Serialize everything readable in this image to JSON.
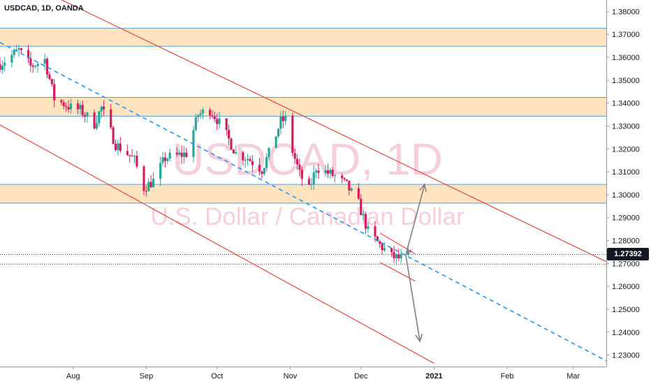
{
  "header": {
    "symbol_info": "USDCAD, 1D, OANDA"
  },
  "watermark": {
    "symbol": "USDCAD, 1D",
    "description": "U.S. Dollar / Canadian Dollar"
  },
  "last_price": {
    "label": "1.27392",
    "value": 1.27392
  },
  "colors": {
    "up": "#26a69a",
    "down": "#d81b60",
    "zone_fill": "#ffe4bf",
    "zone_border": "#5b9bd5",
    "channel": "#e53935",
    "midline": "#2196f3",
    "arrow": "#808080",
    "axis_bg": "#ffffff"
  },
  "chart_data": {
    "type": "candlestick",
    "y_axis": {
      "min": 1.225,
      "max": 1.385,
      "ticks": [
        1.38,
        1.37,
        1.36,
        1.35,
        1.34,
        1.33,
        1.32,
        1.31,
        1.3,
        1.29,
        1.28,
        1.27,
        1.26,
        1.25,
        1.24,
        1.23
      ],
      "tick_labels": [
        "1.38000",
        "1.37000",
        "1.36000",
        "1.35000",
        "1.34000",
        "1.33000",
        "1.32000",
        "1.31000",
        "1.30000",
        "1.29000",
        "1.28000",
        "1.27000",
        "1.26000",
        "1.25000",
        "1.24000",
        "1.23000"
      ]
    },
    "x_axis": {
      "start": "2020-07-01",
      "end": "2021-03-15",
      "ticks": [
        {
          "date": "2020-08-01",
          "label": "Aug",
          "bold": false
        },
        {
          "date": "2020-09-01",
          "label": "Sep",
          "bold": false
        },
        {
          "date": "2020-10-01",
          "label": "Oct",
          "bold": false
        },
        {
          "date": "2020-11-01",
          "label": "Nov",
          "bold": false
        },
        {
          "date": "2020-12-01",
          "label": "Dec",
          "bold": false
        },
        {
          "date": "2021-01-01",
          "label": "2021",
          "bold": true
        },
        {
          "date": "2021-02-01",
          "label": "Feb",
          "bold": false
        },
        {
          "date": "2021-03-01",
          "label": "Mar",
          "bold": false
        }
      ]
    },
    "anchors": [
      [
        "2020-07-01",
        1.357
      ],
      [
        "2020-07-09",
        1.363
      ],
      [
        "2020-07-14",
        1.356
      ],
      [
        "2020-07-20",
        1.359
      ],
      [
        "2020-07-24",
        1.342
      ],
      [
        "2020-07-31",
        1.338
      ],
      [
        "2020-08-04",
        1.337
      ],
      [
        "2020-08-10",
        1.331
      ],
      [
        "2020-08-13",
        1.338
      ],
      [
        "2020-08-19",
        1.322
      ],
      [
        "2020-08-24",
        1.318
      ],
      [
        "2020-08-27",
        1.315
      ],
      [
        "2020-08-31",
        1.303
      ],
      [
        "2020-09-04",
        1.306
      ],
      [
        "2020-09-09",
        1.316
      ],
      [
        "2020-09-14",
        1.317
      ],
      [
        "2020-09-18",
        1.318
      ],
      [
        "2020-09-23",
        1.335
      ],
      [
        "2020-09-28",
        1.337
      ],
      [
        "2020-10-01",
        1.333
      ],
      [
        "2020-10-05",
        1.326
      ],
      [
        "2020-10-09",
        1.318
      ],
      [
        "2020-10-14",
        1.316
      ],
      [
        "2020-10-20",
        1.311
      ],
      [
        "2020-10-23",
        1.318
      ],
      [
        "2020-10-28",
        1.332
      ],
      [
        "2020-10-30",
        1.333
      ],
      [
        "2020-11-02",
        1.319
      ],
      [
        "2020-11-05",
        1.309
      ],
      [
        "2020-11-09",
        1.302
      ],
      [
        "2020-11-12",
        1.312
      ],
      [
        "2020-11-16",
        1.31
      ],
      [
        "2020-11-20",
        1.308
      ],
      [
        "2020-11-25",
        1.304
      ],
      [
        "2020-11-30",
        1.296
      ],
      [
        "2020-12-04",
        1.284
      ],
      [
        "2020-12-09",
        1.278
      ],
      [
        "2020-12-14",
        1.273
      ],
      [
        "2020-12-18",
        1.272
      ],
      [
        "2020-12-22",
        1.274
      ]
    ],
    "horizontal_zones": [
      {
        "low": 1.3648,
        "high": 1.3727
      },
      {
        "low": 1.3343,
        "high": 1.3425
      },
      {
        "low": 1.2963,
        "high": 1.3045
      }
    ],
    "dotted_levels": [
      1.2739,
      1.2697
    ],
    "trendlines": [
      {
        "style": "solid",
        "color_key": "channel",
        "from": [
          "2020-07-11",
          1.393
        ],
        "to": [
          "2021-03-15",
          1.2708
        ]
      },
      {
        "style": "solid",
        "color_key": "channel",
        "from": [
          "2020-07-01",
          1.3305
        ],
        "to": [
          "2021-01-01",
          1.2264
        ]
      },
      {
        "style": "dashed",
        "color_key": "midline",
        "from": [
          "2020-07-01",
          1.3665
        ],
        "to": [
          "2021-03-15",
          1.2275
        ]
      },
      {
        "style": "solid",
        "color_key": "channel",
        "from": [
          "2020-12-09",
          1.2833
        ],
        "to": [
          "2020-12-24",
          1.2742
        ]
      },
      {
        "style": "solid",
        "color_key": "channel",
        "from": [
          "2020-12-09",
          1.2705
        ],
        "to": [
          "2020-12-24",
          1.2623
        ]
      }
    ],
    "arrows": [
      {
        "from": [
          "2020-12-20",
          1.2737
        ],
        "to": [
          "2020-12-28",
          1.3045
        ]
      },
      {
        "from": [
          "2020-12-20",
          1.2737
        ],
        "to": [
          "2020-12-26",
          1.236
        ]
      }
    ]
  }
}
